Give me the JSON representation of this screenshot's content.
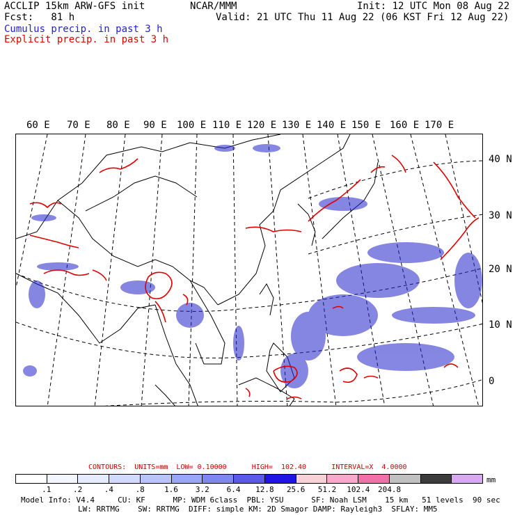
{
  "header": {
    "title_left": "ACCLIP 15km ARW-GFS init",
    "forecast": "Fcst:   81 h",
    "center": "NCAR/MMM",
    "init": "Init: 12 UTC Mon 08 Aug 22",
    "valid": "Valid: 21 UTC Thu 11 Aug 22 (06 KST Fri 12 Aug 22)",
    "legend_cumulus": "Cumulus precip. in past 3 h",
    "legend_explicit": "Explicit precip. in past 3 h"
  },
  "colors": {
    "cumulus": "#2222cc",
    "explicit": "#e00000",
    "contour_text": "#cc0000",
    "grid": "#000000"
  },
  "map": {
    "lon_labels": [
      "60 E",
      "70 E",
      "80 E",
      "90 E",
      "100 E",
      "110 E",
      "120 E",
      "130 E",
      "140 E",
      "150 E",
      "160 E",
      "170 E"
    ],
    "lat_labels": [
      "40 N",
      "30 N",
      "20 N",
      "10 N",
      "0"
    ],
    "projection": "Lambert conformal",
    "gridlines": "dashed"
  },
  "contours": {
    "text": "CONTOURS:  UNITS=mm  LOW= 0.10000      HIGH=  102.40      INTERVAL=X  4.0000"
  },
  "colorbar": {
    "colors": [
      "#ffffff",
      "#f4f6ff",
      "#e6ebff",
      "#d2daff",
      "#b8c4ff",
      "#9aa6f8",
      "#7e86f0",
      "#5a5ae8",
      "#1e14e6",
      "#f8d0d8",
      "#f8a8c8",
      "#f070a8",
      "#c0c0c0",
      "#3c3c3c",
      "#d8a8f0"
    ],
    "ticks": [
      ".1",
      ".2",
      ".4",
      ".8",
      "1.6",
      "3.2",
      "6.4",
      "12.8",
      "25.6",
      "51.2",
      "102.4",
      "204.8"
    ],
    "units": "mm"
  },
  "model_info": {
    "line1": "Model Info: V4.4     CU: KF      MP: WDM 6class  PBL: YSU      SF: Noah LSM    15 km   51 levels  90 sec",
    "line2": "LW: RRTMG    SW: RRTMG  DIFF: simple KM: 2D Smagor DAMP: Rayleigh3  SFLAY: MM5"
  }
}
